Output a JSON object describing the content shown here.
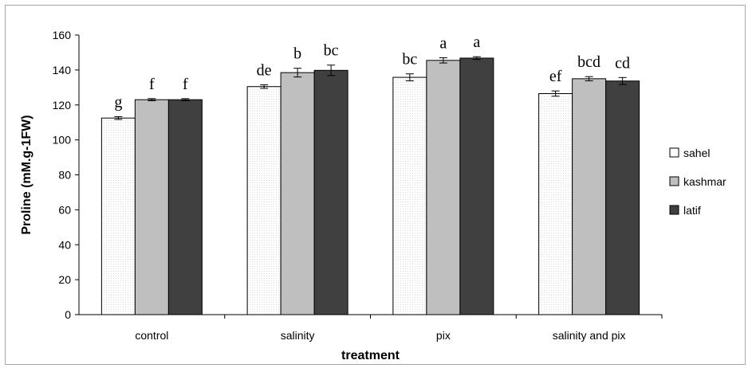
{
  "chart_data": {
    "type": "bar",
    "categories": [
      "control",
      "salinity",
      "pix",
      "salinity and pix"
    ],
    "series": [
      {
        "name": "sahel",
        "values": [
          112.5,
          130.5,
          135.8,
          126.5
        ],
        "errors": [
          0.8,
          1.0,
          2.0,
          1.5
        ],
        "color": "#ffffff"
      },
      {
        "name": "kashmar",
        "values": [
          123,
          138.5,
          145.5,
          135
        ],
        "errors": [
          0.6,
          2.5,
          1.5,
          1.2
        ],
        "color": "#bfbfbf"
      },
      {
        "name": "latif",
        "values": [
          123,
          139.8,
          146.8,
          133.7
        ],
        "errors": [
          0.6,
          3.0,
          0.8,
          2.0
        ],
        "color": "#404040"
      }
    ],
    "significance_letters": [
      [
        "g",
        "f",
        "f"
      ],
      [
        "de",
        "b",
        "bc"
      ],
      [
        "bc",
        "a",
        "a"
      ],
      [
        "ef",
        "bcd",
        "cd"
      ]
    ],
    "xlabel": "treatment",
    "ylabel": "Proline  (mM.g-1FW)",
    "ylim": [
      0,
      160
    ],
    "yticks": [
      0,
      20,
      40,
      60,
      80,
      100,
      120,
      140,
      160
    ],
    "grid": false,
    "legend_position": "right"
  }
}
